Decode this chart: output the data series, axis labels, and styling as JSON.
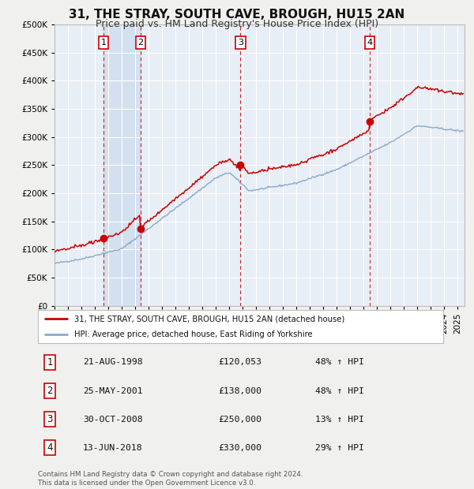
{
  "title": "31, THE STRAY, SOUTH CAVE, BROUGH, HU15 2AN",
  "subtitle": "Price paid vs. HM Land Registry's House Price Index (HPI)",
  "ylim": [
    0,
    500000
  ],
  "yticks": [
    0,
    50000,
    100000,
    150000,
    200000,
    250000,
    300000,
    350000,
    400000,
    450000,
    500000
  ],
  "xlim_start": 1995.0,
  "xlim_end": 2025.5,
  "fig_bg": "#f0f0ee",
  "plot_bg": "#e8eef5",
  "grid_color": "#ffffff",
  "sale_color": "#cc0000",
  "hpi_color": "#88aacc",
  "highlight_color": "#d0dff0",
  "transactions": [
    {
      "num": 1,
      "date_x": 1998.64,
      "price": 120053
    },
    {
      "num": 2,
      "date_x": 2001.4,
      "price": 138000
    },
    {
      "num": 3,
      "date_x": 2008.83,
      "price": 250000
    },
    {
      "num": 4,
      "date_x": 2018.45,
      "price": 330000
    }
  ],
  "legend_line1": "31, THE STRAY, SOUTH CAVE, BROUGH, HU15 2AN (detached house)",
  "legend_line2": "HPI: Average price, detached house, East Riding of Yorkshire",
  "table_rows": [
    [
      "1",
      "21-AUG-1998",
      "£120,053",
      "48% ↑ HPI"
    ],
    [
      "2",
      "25-MAY-2001",
      "£138,000",
      "48% ↑ HPI"
    ],
    [
      "3",
      "30-OCT-2008",
      "£250,000",
      "13% ↑ HPI"
    ],
    [
      "4",
      "13-JUN-2018",
      "£330,000",
      "29% ↑ HPI"
    ]
  ],
  "footer": "Contains HM Land Registry data © Crown copyright and database right 2024.\nThis data is licensed under the Open Government Licence v3.0.",
  "title_fontsize": 11,
  "subtitle_fontsize": 9,
  "tick_fontsize": 7.5
}
